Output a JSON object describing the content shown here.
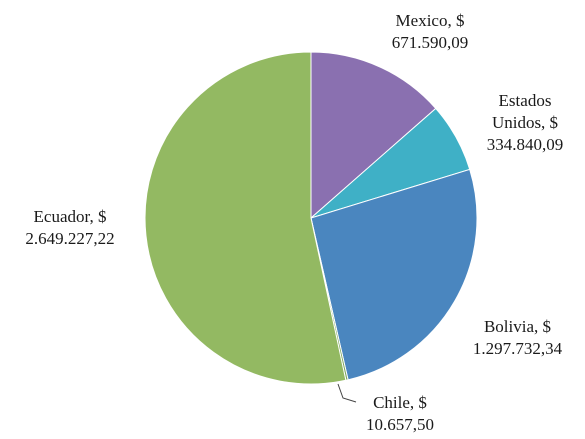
{
  "chart_data": {
    "type": "pie",
    "colors": {
      "Mexico": "#8a70b0",
      "Estados Unidos": "#3fb0c6",
      "Bolivia": "#4a86bf",
      "Chile": "#7fa95e",
      "Ecuador": "#93b962"
    },
    "slices": [
      {
        "name": "Mexico",
        "value": 671590.09,
        "label_lines": [
          "Mexico, $",
          "671.590,09"
        ]
      },
      {
        "name": "Estados Unidos",
        "value": 334840.09,
        "label_lines": [
          "Estados",
          "Unidos, $",
          "334.840,09"
        ]
      },
      {
        "name": "Bolivia",
        "value": 1297732.34,
        "label_lines": [
          "Bolivia, $",
          "1.297.732,34"
        ]
      },
      {
        "name": "Chile",
        "value": 10657.5,
        "label_lines": [
          "Chile, $",
          "10.657,50"
        ]
      },
      {
        "name": "Ecuador",
        "value": 2649227.22,
        "label_lines": [
          "Ecuador, $",
          "2.649.227,22"
        ]
      }
    ],
    "legend": "none"
  }
}
